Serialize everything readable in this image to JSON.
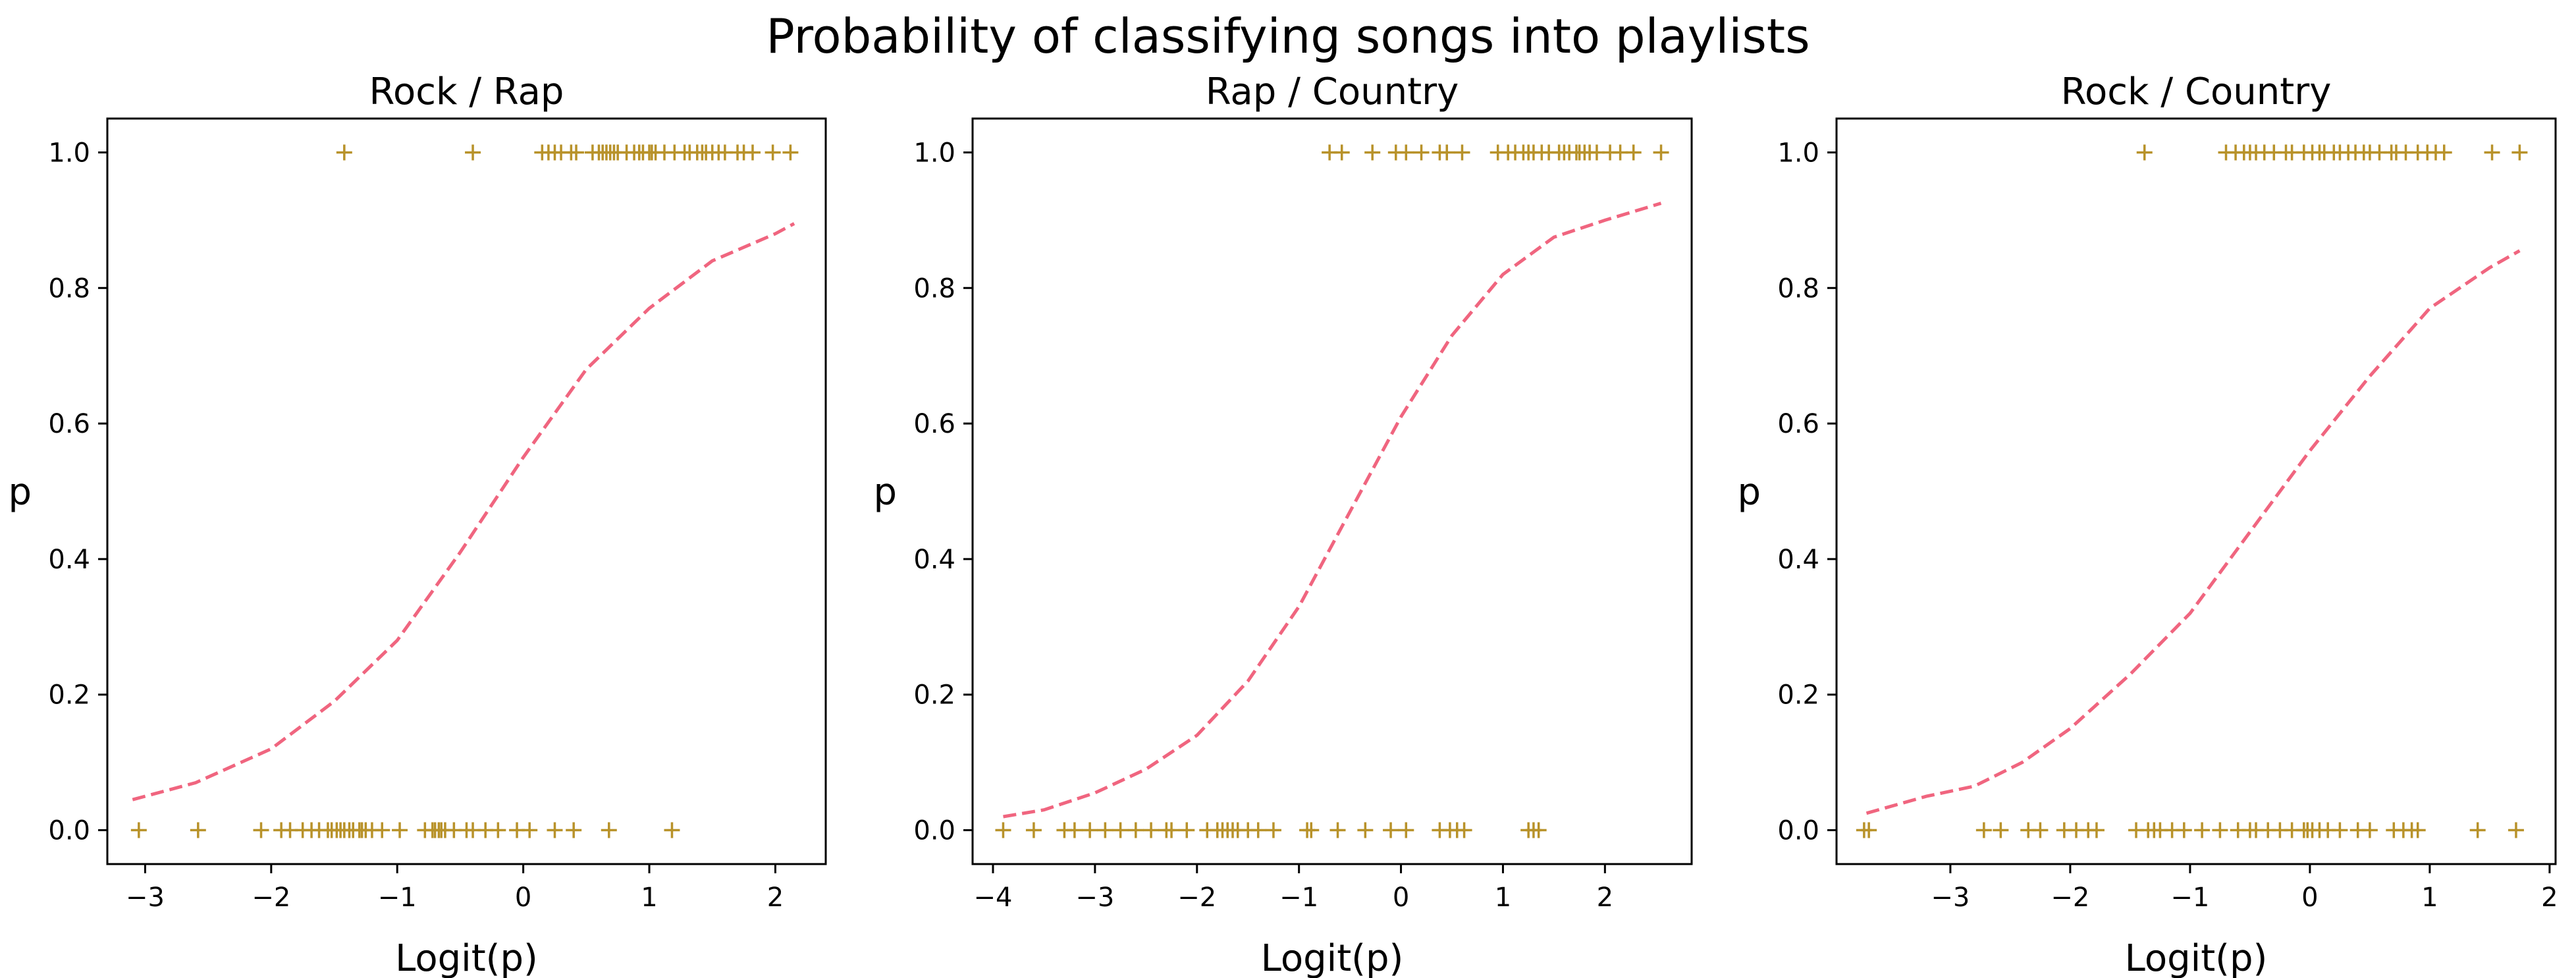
{
  "figure": {
    "suptitle": "Probability of classifying songs into playlists"
  },
  "colors": {
    "points": "#b8922a",
    "curve": "#f0657f",
    "axes": "#000000"
  },
  "chart_data": [
    {
      "type": "scatter",
      "title": "Rock / Rap",
      "xlabel": "Logit(p)",
      "ylabel": "p",
      "xlim": [
        -3.3,
        2.4
      ],
      "ylim": [
        -0.05,
        1.05
      ],
      "xticks": [
        -3,
        -2,
        -1,
        0,
        1,
        2
      ],
      "xtick_labels": [
        "−3",
        "−2",
        "−1",
        "0",
        "1",
        "2"
      ],
      "yticks": [
        0.0,
        0.2,
        0.4,
        0.6,
        0.8,
        1.0
      ],
      "ytick_labels": [
        "0.0",
        "0.2",
        "0.4",
        "0.6",
        "0.8",
        "1.0"
      ],
      "grid": false,
      "series": [
        {
          "kind": "points",
          "marker": "+",
          "x": [
            -3.05,
            -2.58,
            -2.08,
            -1.92,
            -1.85,
            -1.75,
            -1.68,
            -1.62,
            -1.55,
            -1.52,
            -1.48,
            -1.45,
            -1.42,
            -1.38,
            -1.35,
            -1.3,
            -1.28,
            -1.25,
            -1.2,
            -1.12,
            -0.98,
            -0.78,
            -0.72,
            -0.7,
            -0.67,
            -0.65,
            -0.62,
            -0.55,
            -0.45,
            -0.4,
            -0.3,
            -0.2,
            -0.05,
            0.05,
            0.25,
            0.4,
            0.68,
            1.18,
            -1.42,
            -0.4,
            0.15,
            0.2,
            0.25,
            0.3,
            0.38,
            0.42,
            0.55,
            0.6,
            0.63,
            0.66,
            0.69,
            0.72,
            0.75,
            0.82,
            0.88,
            0.92,
            0.95,
            1.0,
            1.02,
            1.05,
            1.12,
            1.2,
            1.28,
            1.32,
            1.38,
            1.42,
            1.45,
            1.5,
            1.55,
            1.6,
            1.7,
            1.75,
            1.82,
            1.98,
            2.12
          ],
          "y": [
            0,
            0,
            0,
            0,
            0,
            0,
            0,
            0,
            0,
            0,
            0,
            0,
            0,
            0,
            0,
            0,
            0,
            0,
            0,
            0,
            0,
            0,
            0,
            0,
            0,
            0,
            0,
            0,
            0,
            0,
            0,
            0,
            0,
            0,
            0,
            0,
            0,
            0,
            1,
            1,
            1,
            1,
            1,
            1,
            1,
            1,
            1,
            1,
            1,
            1,
            1,
            1,
            1,
            1,
            1,
            1,
            1,
            1,
            1,
            1,
            1,
            1,
            1,
            1,
            1,
            1,
            1,
            1,
            1,
            1,
            1,
            1,
            1,
            1,
            1
          ]
        },
        {
          "kind": "curve",
          "linestyle": "dashed",
          "x": [
            -3.1,
            -2.6,
            -2.0,
            -1.5,
            -1.0,
            -0.5,
            0.0,
            0.5,
            1.0,
            1.5,
            2.0,
            2.15
          ],
          "y": [
            0.045,
            0.07,
            0.12,
            0.19,
            0.28,
            0.41,
            0.55,
            0.68,
            0.77,
            0.84,
            0.88,
            0.895
          ]
        }
      ]
    },
    {
      "type": "scatter",
      "title": "Rap / Country",
      "xlabel": "Logit(p)",
      "ylabel": "p",
      "xlim": [
        -4.2,
        2.85
      ],
      "ylim": [
        -0.05,
        1.05
      ],
      "xticks": [
        -4,
        -3,
        -2,
        -1,
        0,
        1,
        2
      ],
      "xtick_labels": [
        "−4",
        "−3",
        "−2",
        "−1",
        "0",
        "1",
        "2"
      ],
      "yticks": [
        0.0,
        0.2,
        0.4,
        0.6,
        0.8,
        1.0
      ],
      "ytick_labels": [
        "0.0",
        "0.2",
        "0.4",
        "0.6",
        "0.8",
        "1.0"
      ],
      "grid": false,
      "series": [
        {
          "kind": "points",
          "marker": "+",
          "x": [
            -3.9,
            -3.6,
            -3.3,
            -3.2,
            -3.05,
            -2.9,
            -2.75,
            -2.6,
            -2.45,
            -2.3,
            -2.25,
            -2.1,
            -1.9,
            -1.8,
            -1.75,
            -1.7,
            -1.65,
            -1.6,
            -1.5,
            -1.4,
            -1.25,
            -0.92,
            -0.88,
            -0.62,
            -0.35,
            -0.1,
            0.05,
            0.38,
            0.48,
            0.55,
            0.62,
            1.25,
            1.3,
            1.35,
            -0.7,
            -0.58,
            -0.28,
            -0.05,
            0.05,
            0.2,
            0.38,
            0.45,
            0.6,
            0.95,
            1.05,
            1.12,
            1.2,
            1.25,
            1.3,
            1.38,
            1.45,
            1.55,
            1.6,
            1.65,
            1.72,
            1.75,
            1.8,
            1.85,
            1.92,
            2.05,
            2.15,
            2.28,
            2.55
          ],
          "y": [
            0,
            0,
            0,
            0,
            0,
            0,
            0,
            0,
            0,
            0,
            0,
            0,
            0,
            0,
            0,
            0,
            0,
            0,
            0,
            0,
            0,
            0,
            0,
            0,
            0,
            0,
            0,
            0,
            0,
            0,
            0,
            0,
            0,
            0,
            1,
            1,
            1,
            1,
            1,
            1,
            1,
            1,
            1,
            1,
            1,
            1,
            1,
            1,
            1,
            1,
            1,
            1,
            1,
            1,
            1,
            1,
            1,
            1,
            1,
            1,
            1,
            1,
            1
          ]
        },
        {
          "kind": "curve",
          "linestyle": "dashed",
          "x": [
            -3.9,
            -3.5,
            -3.0,
            -2.5,
            -2.0,
            -1.5,
            -1.0,
            -0.5,
            0.0,
            0.5,
            1.0,
            1.5,
            2.0,
            2.55
          ],
          "y": [
            0.02,
            0.03,
            0.055,
            0.09,
            0.14,
            0.22,
            0.33,
            0.47,
            0.61,
            0.73,
            0.82,
            0.875,
            0.9,
            0.925
          ]
        }
      ]
    },
    {
      "type": "scatter",
      "title": "Rock / Country",
      "xlabel": "Logit(p)",
      "ylabel": "p",
      "xlim": [
        -3.95,
        2.05
      ],
      "ylim": [
        -0.05,
        1.05
      ],
      "xticks": [
        -3,
        -2,
        -1,
        0,
        1,
        2
      ],
      "xtick_labels": [
        "−3",
        "−2",
        "−1",
        "0",
        "1",
        "2"
      ],
      "yticks": [
        0.0,
        0.2,
        0.4,
        0.6,
        0.8,
        1.0
      ],
      "ytick_labels": [
        "0.0",
        "0.2",
        "0.4",
        "0.6",
        "0.8",
        "1.0"
      ],
      "grid": false,
      "series": [
        {
          "kind": "points",
          "marker": "+",
          "x": [
            -3.72,
            -3.68,
            -2.72,
            -2.58,
            -2.35,
            -2.25,
            -2.05,
            -1.95,
            -1.85,
            -1.78,
            -1.45,
            -1.35,
            -1.3,
            -1.25,
            -1.15,
            -1.05,
            -0.9,
            -0.75,
            -0.6,
            -0.5,
            -0.45,
            -0.35,
            -0.25,
            -0.15,
            -0.05,
            -0.02,
            0.02,
            0.08,
            0.15,
            0.25,
            0.4,
            0.5,
            0.7,
            0.78,
            0.85,
            0.9,
            1.4,
            1.72,
            -1.38,
            -0.7,
            -0.62,
            -0.55,
            -0.5,
            -0.45,
            -0.38,
            -0.3,
            -0.2,
            -0.15,
            -0.05,
            0.02,
            0.08,
            0.12,
            0.2,
            0.25,
            0.32,
            0.38,
            0.45,
            0.5,
            0.58,
            0.68,
            0.72,
            0.8,
            0.9,
            0.98,
            1.05,
            1.12,
            1.52,
            1.75
          ],
          "y": [
            0,
            0,
            0,
            0,
            0,
            0,
            0,
            0,
            0,
            0,
            0,
            0,
            0,
            0,
            0,
            0,
            0,
            0,
            0,
            0,
            0,
            0,
            0,
            0,
            0,
            0,
            0,
            0,
            0,
            0,
            0,
            0,
            0,
            0,
            0,
            0,
            0,
            0,
            1,
            1,
            1,
            1,
            1,
            1,
            1,
            1,
            1,
            1,
            1,
            1,
            1,
            1,
            1,
            1,
            1,
            1,
            1,
            1,
            1,
            1,
            1,
            1,
            1,
            1,
            1,
            1,
            1,
            1
          ]
        },
        {
          "kind": "curve",
          "linestyle": "dashed",
          "x": [
            -3.7,
            -3.2,
            -2.8,
            -2.4,
            -2.0,
            -1.5,
            -1.0,
            -0.5,
            0.0,
            0.5,
            1.0,
            1.5,
            1.75
          ],
          "y": [
            0.025,
            0.05,
            0.065,
            0.1,
            0.15,
            0.23,
            0.32,
            0.44,
            0.56,
            0.67,
            0.77,
            0.83,
            0.855
          ]
        }
      ]
    }
  ]
}
